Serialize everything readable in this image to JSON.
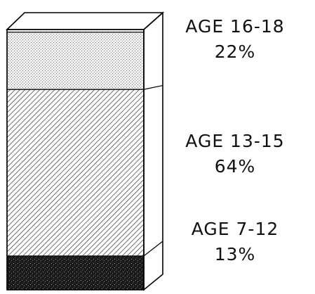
{
  "chart_data": {
    "type": "bar",
    "categories": [
      "AGE 7-12",
      "AGE 13-15",
      "AGE 16-18"
    ],
    "values": [
      13,
      64,
      22
    ],
    "value_labels": [
      "13%",
      "64%",
      "22%"
    ]
  }
}
